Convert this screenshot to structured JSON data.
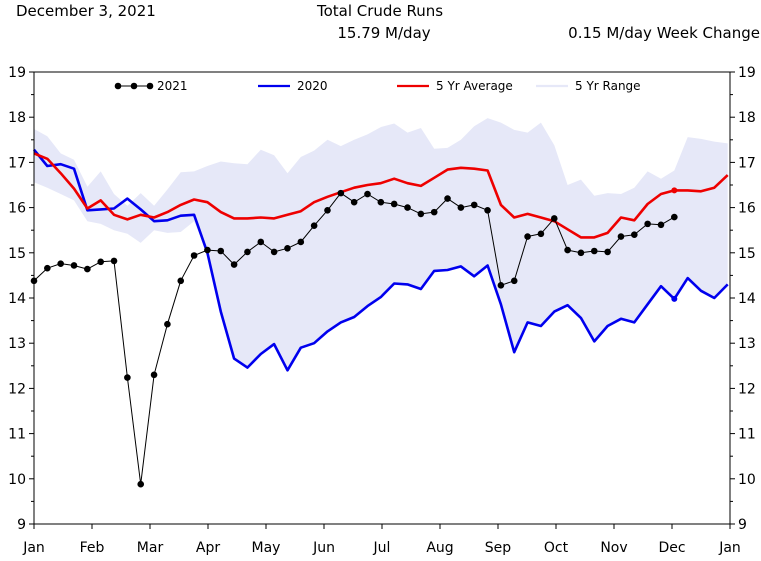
{
  "header": {
    "date": "December 3, 2021",
    "title": "Total Crude Runs",
    "value": "15.79 M/day",
    "change": "0.15 M/day Week Change"
  },
  "colors": {
    "y2021": "#000000",
    "y2020": "#0000ee",
    "avg": "#ee0000",
    "range": "#e6e8f8"
  },
  "chart_data": {
    "type": "line",
    "title": "Total Crude Runs",
    "xlabel": "",
    "ylabel": "",
    "ylim": [
      9,
      19
    ],
    "yticks": [
      9,
      10,
      11,
      12,
      13,
      14,
      15,
      16,
      17,
      18,
      19
    ],
    "xlim": [
      0,
      12
    ],
    "xticks": [
      "Jan",
      "Feb",
      "Mar",
      "Apr",
      "May",
      "Jun",
      "Jul",
      "Aug",
      "Sep",
      "Oct",
      "Nov",
      "Dec",
      "Jan"
    ],
    "legend": [
      "2021",
      "2020",
      "5 Yr Average",
      "5 Yr Range"
    ],
    "series": [
      {
        "name": "2021",
        "x": [
          0.0,
          0.23,
          0.46,
          0.69,
          0.92,
          1.15,
          1.38,
          1.61,
          1.84,
          2.07,
          2.3,
          2.53,
          2.76,
          2.99,
          3.22,
          3.45,
          3.68,
          3.91,
          4.14,
          4.37,
          4.6,
          4.83,
          5.06,
          5.29,
          5.52,
          5.75,
          5.98,
          6.21,
          6.44,
          6.67,
          6.9,
          7.13,
          7.36,
          7.59,
          7.82,
          8.05,
          8.28,
          8.51,
          8.74,
          8.97,
          9.2,
          9.43,
          9.66,
          9.89,
          10.12,
          10.35,
          10.58,
          10.81,
          11.04
        ],
        "values": [
          14.38,
          14.66,
          14.76,
          14.72,
          14.64,
          14.8,
          14.82,
          12.24,
          9.88,
          12.3,
          13.42,
          14.38,
          14.94,
          15.06,
          15.04,
          14.74,
          15.02,
          15.24,
          15.02,
          15.1,
          15.24,
          15.6,
          15.94,
          16.32,
          16.12,
          16.3,
          16.12,
          16.08,
          16.0,
          15.86,
          15.9,
          16.2,
          16.0,
          16.06,
          15.94,
          14.28,
          14.38,
          15.36,
          15.42,
          15.76,
          15.06,
          15.0,
          15.04,
          15.02,
          15.36,
          15.4,
          15.64,
          15.62,
          15.79
        ]
      },
      {
        "name": "2020",
        "x": [
          0.0,
          0.23,
          0.46,
          0.69,
          0.92,
          1.15,
          1.38,
          1.61,
          1.84,
          2.07,
          2.3,
          2.53,
          2.76,
          2.99,
          3.22,
          3.45,
          3.68,
          3.91,
          4.14,
          4.37,
          4.6,
          4.83,
          5.06,
          5.29,
          5.52,
          5.75,
          5.98,
          6.21,
          6.44,
          6.67,
          6.9,
          7.13,
          7.36,
          7.59,
          7.82,
          8.05,
          8.28,
          8.51,
          8.74,
          8.97,
          9.2,
          9.43,
          9.66,
          9.89,
          10.12,
          10.35,
          10.58,
          10.81,
          11.04,
          11.27,
          11.5,
          11.73,
          11.96
        ],
        "values": [
          17.28,
          16.92,
          16.96,
          16.86,
          15.94,
          15.96,
          15.98,
          16.2,
          15.96,
          15.7,
          15.72,
          15.82,
          15.84,
          15.0,
          13.7,
          12.66,
          12.46,
          12.76,
          12.98,
          12.4,
          12.9,
          13.0,
          13.26,
          13.46,
          13.58,
          13.82,
          14.02,
          14.32,
          14.3,
          14.2,
          14.6,
          14.62,
          14.7,
          14.48,
          14.72,
          13.86,
          12.8,
          13.46,
          13.38,
          13.7,
          13.84,
          13.56,
          13.04,
          13.38,
          13.54,
          13.46,
          13.86,
          14.26,
          13.98,
          14.44,
          14.16,
          14.0,
          14.3
        ]
      },
      {
        "name": "5 Yr Average",
        "x": [
          0.0,
          0.23,
          0.46,
          0.69,
          0.92,
          1.15,
          1.38,
          1.61,
          1.84,
          2.07,
          2.3,
          2.53,
          2.76,
          2.99,
          3.22,
          3.45,
          3.68,
          3.91,
          4.14,
          4.37,
          4.6,
          4.83,
          5.06,
          5.29,
          5.52,
          5.75,
          5.98,
          6.21,
          6.44,
          6.67,
          6.9,
          7.13,
          7.36,
          7.59,
          7.82,
          8.05,
          8.28,
          8.51,
          8.74,
          8.97,
          9.2,
          9.43,
          9.66,
          9.89,
          10.12,
          10.35,
          10.58,
          10.81,
          11.04,
          11.27,
          11.5,
          11.73,
          11.96
        ],
        "values": [
          17.2,
          17.08,
          16.76,
          16.42,
          15.98,
          16.16,
          15.84,
          15.74,
          15.84,
          15.78,
          15.9,
          16.06,
          16.18,
          16.12,
          15.9,
          15.76,
          15.76,
          15.78,
          15.76,
          15.84,
          15.92,
          16.12,
          16.24,
          16.34,
          16.44,
          16.5,
          16.54,
          16.64,
          16.54,
          16.48,
          16.66,
          16.84,
          16.88,
          16.86,
          16.82,
          16.06,
          15.78,
          15.86,
          15.78,
          15.7,
          15.52,
          15.34,
          15.34,
          15.44,
          15.78,
          15.72,
          16.08,
          16.3,
          16.38,
          16.38,
          16.36,
          16.44,
          16.72
        ]
      }
    ],
    "range": {
      "name": "5 Yr Range",
      "x": [
        0.0,
        0.23,
        0.46,
        0.69,
        0.92,
        1.15,
        1.38,
        1.61,
        1.84,
        2.07,
        2.3,
        2.53,
        2.76,
        2.99,
        3.22,
        3.45,
        3.68,
        3.91,
        4.14,
        4.37,
        4.6,
        4.83,
        5.06,
        5.29,
        5.52,
        5.75,
        5.98,
        6.21,
        6.44,
        6.67,
        6.9,
        7.13,
        7.36,
        7.59,
        7.82,
        8.05,
        8.28,
        8.51,
        8.74,
        8.97,
        9.2,
        9.43,
        9.66,
        9.89,
        10.12,
        10.35,
        10.58,
        10.81,
        11.04,
        11.27,
        11.5,
        11.73,
        11.96
      ],
      "upper": [
        17.74,
        17.58,
        17.2,
        17.06,
        16.46,
        16.8,
        16.3,
        16.04,
        16.32,
        16.04,
        16.4,
        16.78,
        16.8,
        16.92,
        17.02,
        16.98,
        16.96,
        17.28,
        17.16,
        16.76,
        17.12,
        17.26,
        17.5,
        17.36,
        17.5,
        17.62,
        17.78,
        17.86,
        17.66,
        17.76,
        17.3,
        17.32,
        17.5,
        17.8,
        17.98,
        17.88,
        17.72,
        17.66,
        17.88,
        17.38,
        16.5,
        16.62,
        16.26,
        16.32,
        16.3,
        16.44,
        16.8,
        16.64,
        16.82,
        17.56,
        17.52,
        17.46,
        17.42
      ],
      "lower": [
        16.56,
        16.44,
        16.3,
        16.16,
        15.7,
        15.64,
        15.5,
        15.42,
        15.22,
        15.5,
        15.44,
        15.46,
        15.7,
        15.0,
        13.7,
        12.66,
        12.46,
        12.76,
        12.98,
        12.4,
        12.9,
        13.0,
        13.26,
        13.46,
        13.58,
        13.82,
        14.02,
        14.32,
        14.3,
        14.2,
        14.6,
        14.62,
        14.7,
        14.48,
        14.72,
        13.86,
        12.8,
        13.46,
        13.38,
        13.7,
        13.84,
        13.56,
        13.04,
        13.38,
        13.54,
        13.46,
        13.86,
        14.26,
        13.98,
        14.44,
        14.16,
        14.0,
        14.3
      ]
    }
  }
}
